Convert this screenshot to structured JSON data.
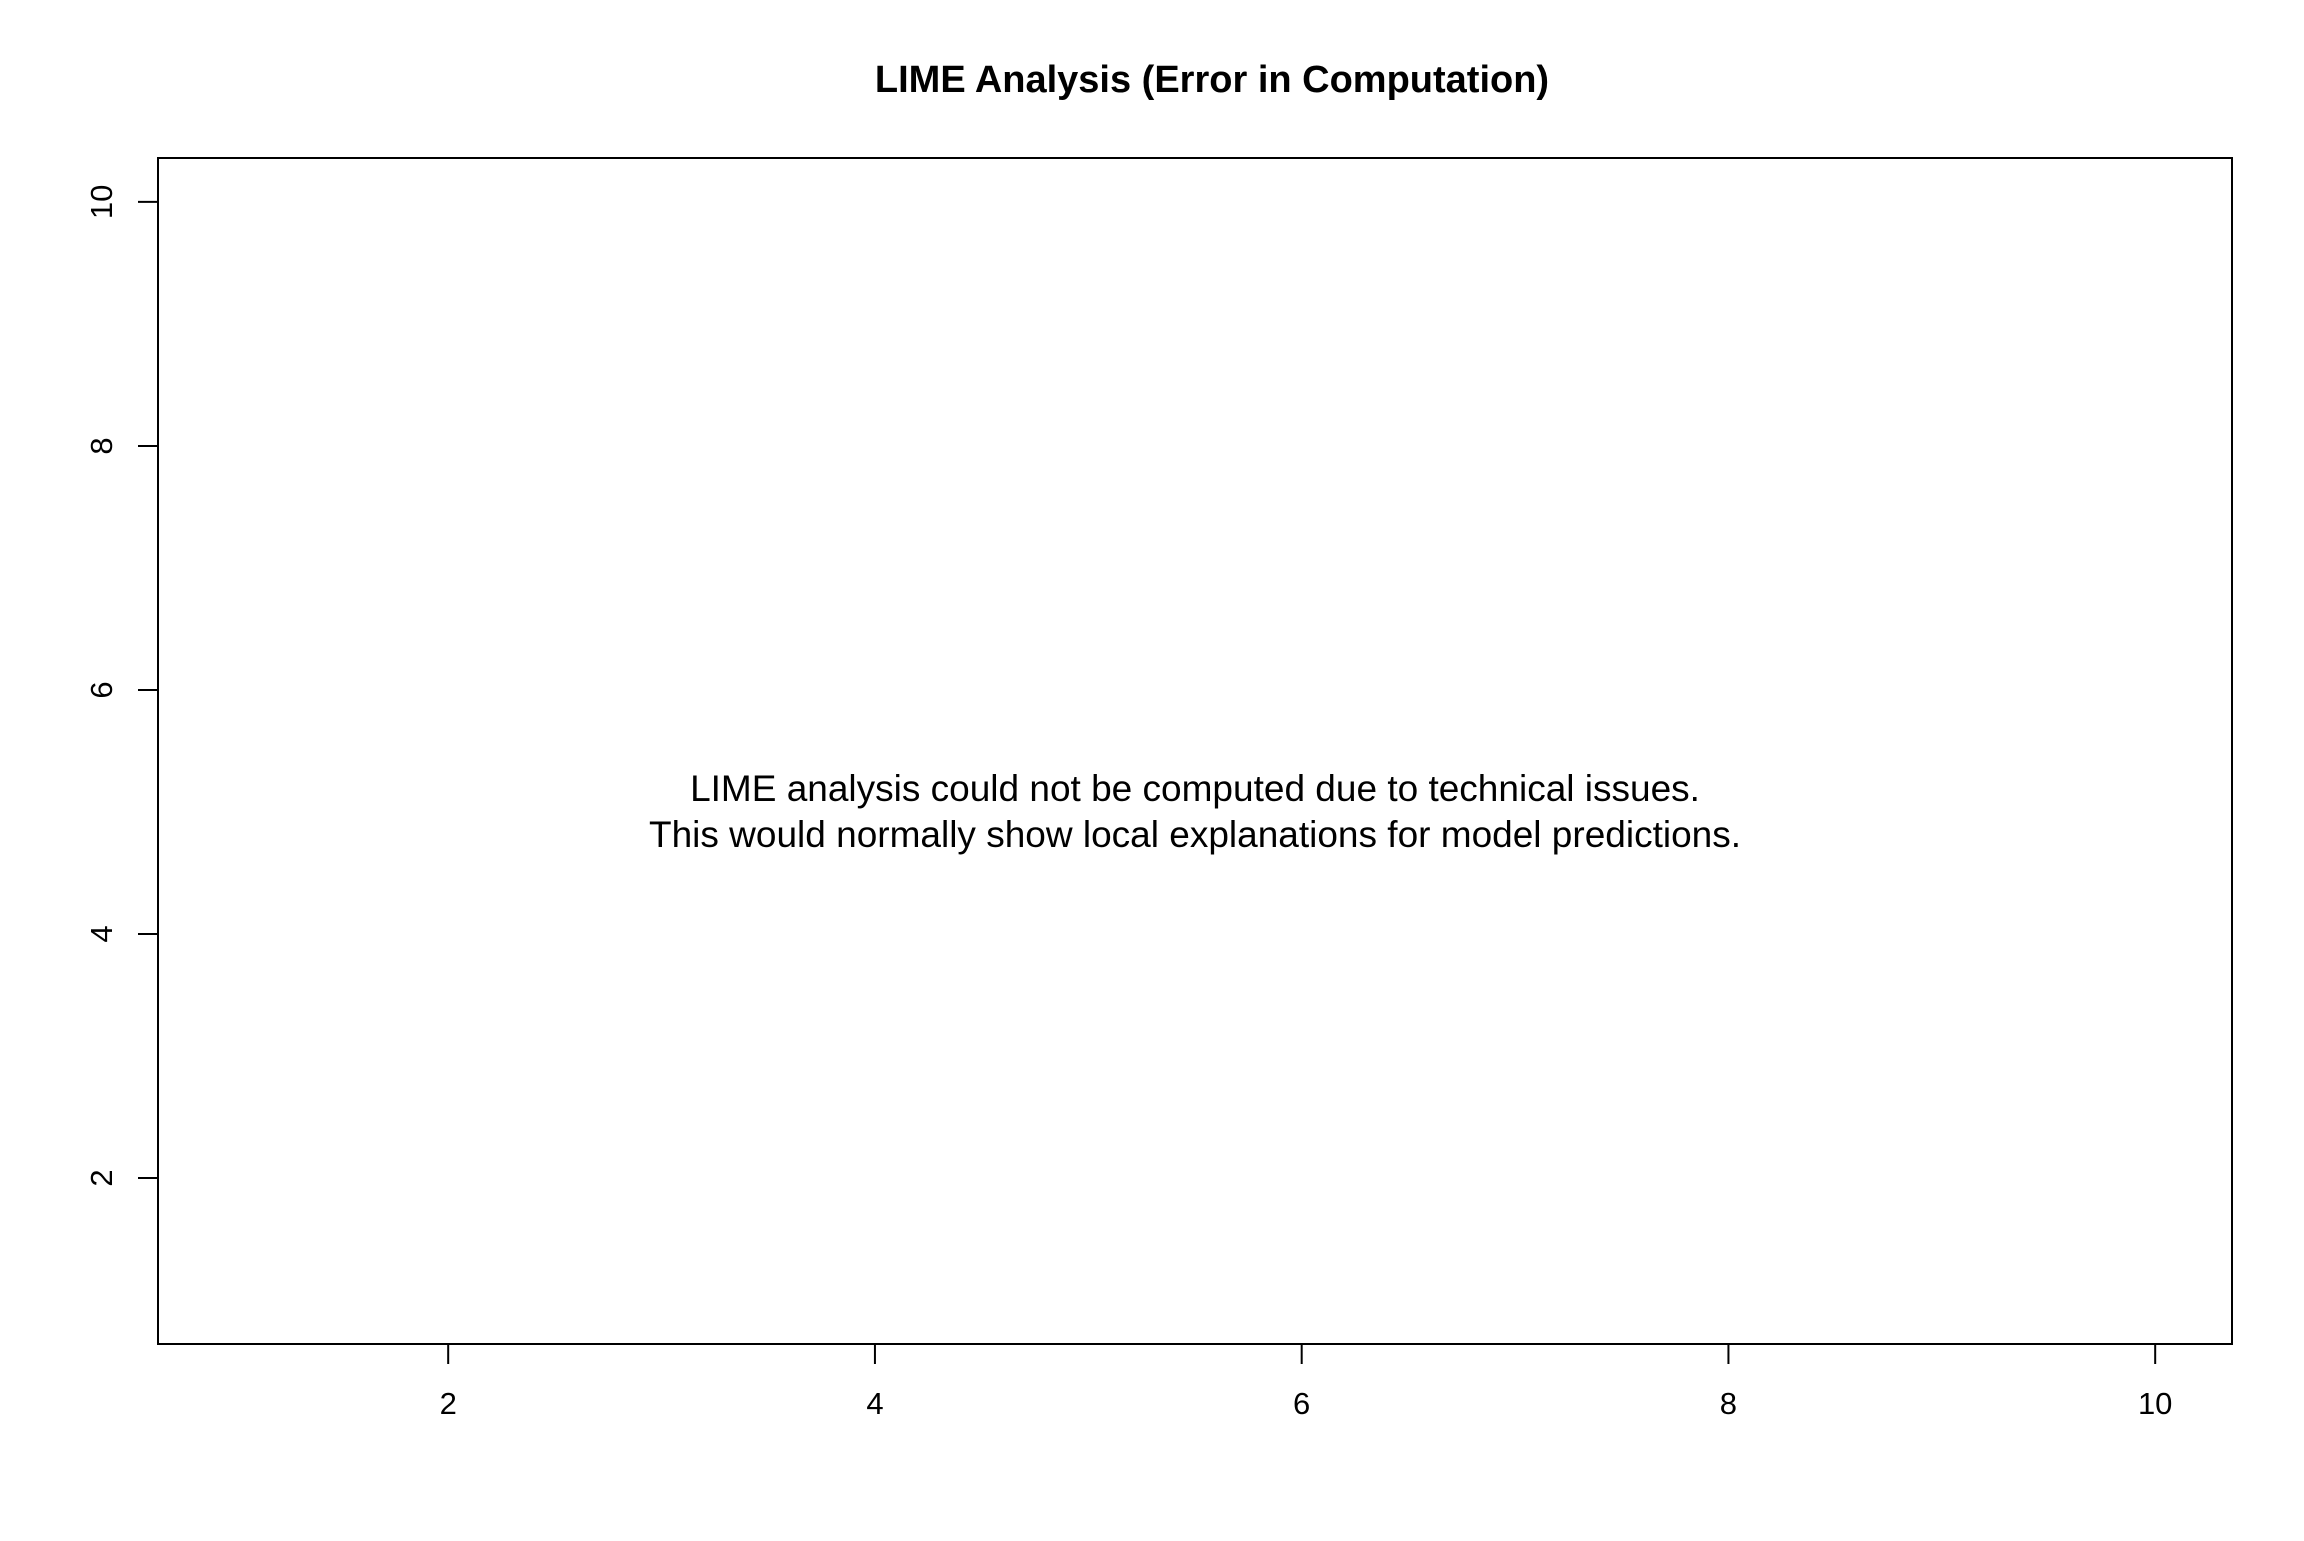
{
  "chart_data": {
    "type": "scatter",
    "title": "LIME Analysis (Error in Computation)",
    "xlabel": "",
    "ylabel": "",
    "xlim": [
      0.64,
      10.36
    ],
    "ylim": [
      0.64,
      10.36
    ],
    "x_ticks": [
      2,
      4,
      6,
      8,
      10
    ],
    "y_ticks": [
      2,
      4,
      6,
      8,
      10
    ],
    "x_tick_labels": [
      "2",
      "4",
      "6",
      "8",
      "10"
    ],
    "y_tick_labels": [
      "2",
      "4",
      "6",
      "8",
      "10"
    ],
    "grid": false,
    "legend": "none",
    "series": [],
    "annotation": {
      "x": 5.5,
      "y": 5.0,
      "lines": [
        "LIME analysis could not be computed due to technical issues.",
        "This would normally show local explanations for model predictions."
      ]
    },
    "colors": {
      "axis": "#000000",
      "background": "#ffffff"
    }
  }
}
